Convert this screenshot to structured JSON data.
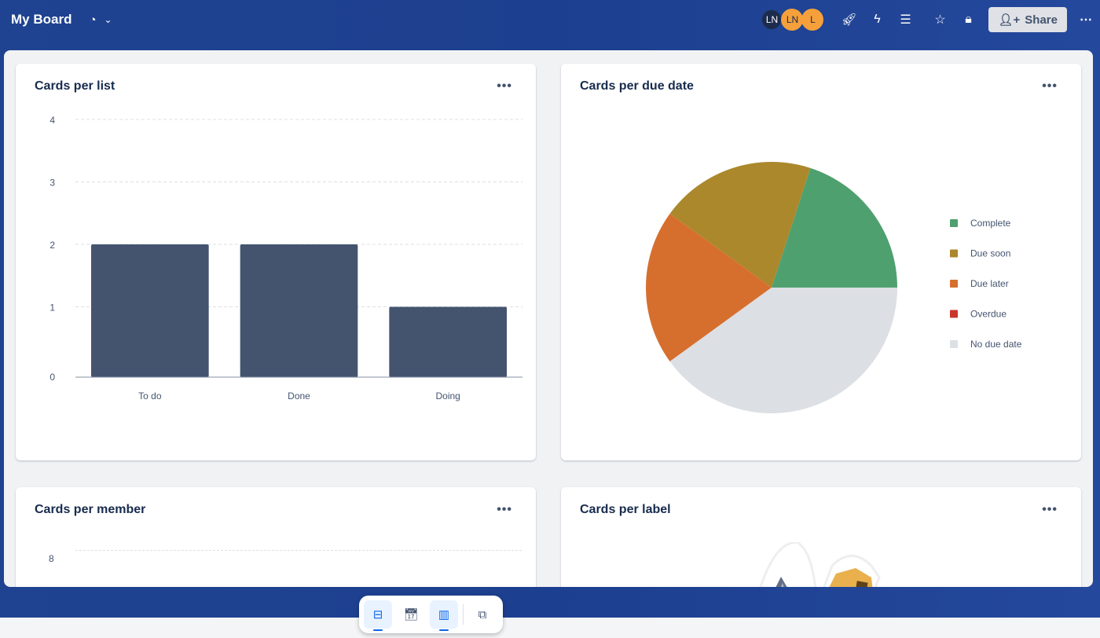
{
  "header": {
    "title": "My Board",
    "members": [
      {
        "initials": "LN",
        "color": "#1d2b4c"
      },
      {
        "initials": "LN",
        "color": "#f5a03a"
      },
      {
        "initials": "L",
        "color": "#f5a03a"
      }
    ],
    "share_label": "Share"
  },
  "cards": {
    "per_list": {
      "title": "Cards per list",
      "more": "•••"
    },
    "per_due": {
      "title": "Cards per due date",
      "more": "•••"
    },
    "per_member": {
      "title": "Cards per member",
      "more": "•••",
      "y_tick": "8"
    },
    "per_label": {
      "title": "Cards per label",
      "more": "•••"
    }
  },
  "chart_data": [
    {
      "type": "bar",
      "title": "Cards per list",
      "categories": [
        "To do",
        "Done",
        "Doing"
      ],
      "values": [
        2,
        2,
        1
      ],
      "ylim": [
        0,
        4
      ],
      "yticks": [
        "0",
        "1",
        "2",
        "3",
        "4"
      ],
      "grid": true,
      "color": "#44546f"
    },
    {
      "type": "pie",
      "title": "Cards per due date",
      "legend_position": "right",
      "slices": [
        {
          "name": "Complete",
          "value": 1,
          "color": "#4fa06f"
        },
        {
          "name": "Due soon",
          "value": 1,
          "color": "#ab882c"
        },
        {
          "name": "Due later",
          "value": 1,
          "color": "#d66f2e"
        },
        {
          "name": "Overdue",
          "value": 0,
          "color": "#c9372c"
        },
        {
          "name": "No due date",
          "value": 2,
          "color": "#dcdfe4"
        }
      ]
    }
  ],
  "dock": {
    "active": [
      "inbox",
      "board"
    ]
  }
}
